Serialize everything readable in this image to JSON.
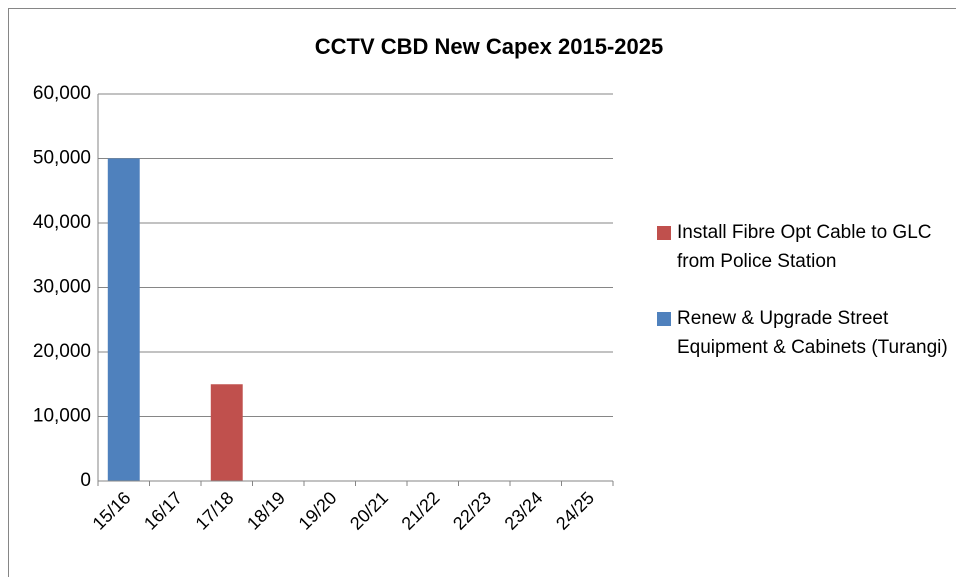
{
  "chart_data": {
    "type": "stacked_bar",
    "title": "CCTV CBD New Capex 2015-2025",
    "categories": [
      "15/16",
      "16/17",
      "17/18",
      "18/19",
      "19/20",
      "20/21",
      "21/22",
      "22/23",
      "23/24",
      "24/25"
    ],
    "series": [
      {
        "name": "Install Fibre Opt Cable to GLC from Police Station",
        "color": "#c0504d",
        "values": [
          0,
          0,
          15000,
          0,
          0,
          0,
          0,
          0,
          0,
          0
        ]
      },
      {
        "name": "Renew & Upgrade Street Equipment & Cabinets (Turangi)",
        "color": "#4f81bd",
        "values": [
          50000,
          0,
          0,
          0,
          0,
          0,
          0,
          0,
          0,
          0
        ]
      }
    ],
    "ylim": [
      0,
      60000
    ],
    "yticks": [
      0,
      {
        "value": 10000,
        "label": "10,000"
      },
      {
        "value": 20000,
        "label": "20,000"
      },
      {
        "value": 30000,
        "label": "30,000"
      },
      {
        "value": 40000,
        "label": "40,000"
      },
      {
        "value": 50000,
        "label": "50,000"
      },
      {
        "value": 60000,
        "label": "60,000"
      }
    ],
    "grid": true,
    "legend": "right"
  }
}
